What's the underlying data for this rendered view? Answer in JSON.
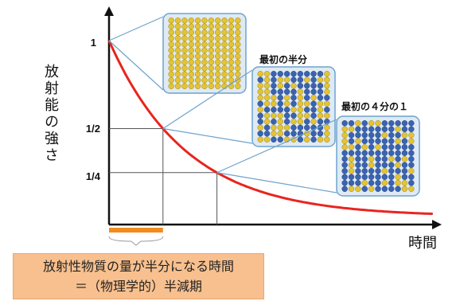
{
  "diagram": {
    "y_axis_label": "放射能の強さ",
    "x_axis_label": "時間",
    "y_ticks": [
      "1",
      "1/2",
      "1/4"
    ],
    "panel_labels": [
      "最初の半分",
      "最初の４分の１"
    ],
    "caption": {
      "line1": "放射性物質の量が半分になる時間",
      "line2": "＝（物理学的）半減期"
    },
    "colors": {
      "decay_curve": "#e8251f",
      "half_life_bar": "#f28c1e",
      "panel_border": "#6fa3cc",
      "panel_fill": "#dfeaf4",
      "atom_undecayed": "#e4c433",
      "atom_decayed": "#3a64b2",
      "caption_fill": "#f8c08e"
    }
  },
  "chart_data": {
    "type": "line",
    "title": "",
    "xlabel": "時間",
    "ylabel": "放射能の強さ",
    "y_tick_labels": [
      "1",
      "1/2",
      "1/4"
    ],
    "series": [
      {
        "x": [
          0,
          1,
          2,
          3,
          4,
          5,
          6
        ],
        "values": [
          1,
          0.5,
          0.25,
          0.125,
          0.0625,
          0.03125,
          0.015625
        ]
      }
    ],
    "units": {
      "x": "half-lives"
    },
    "markers": [
      {
        "x": 0,
        "y": 1,
        "panel": "all atoms undecayed"
      },
      {
        "x": 1,
        "y": 0.5,
        "panel": "最初の半分"
      },
      {
        "x": 2,
        "y": 0.25,
        "panel": "最初の４分の１"
      }
    ]
  }
}
